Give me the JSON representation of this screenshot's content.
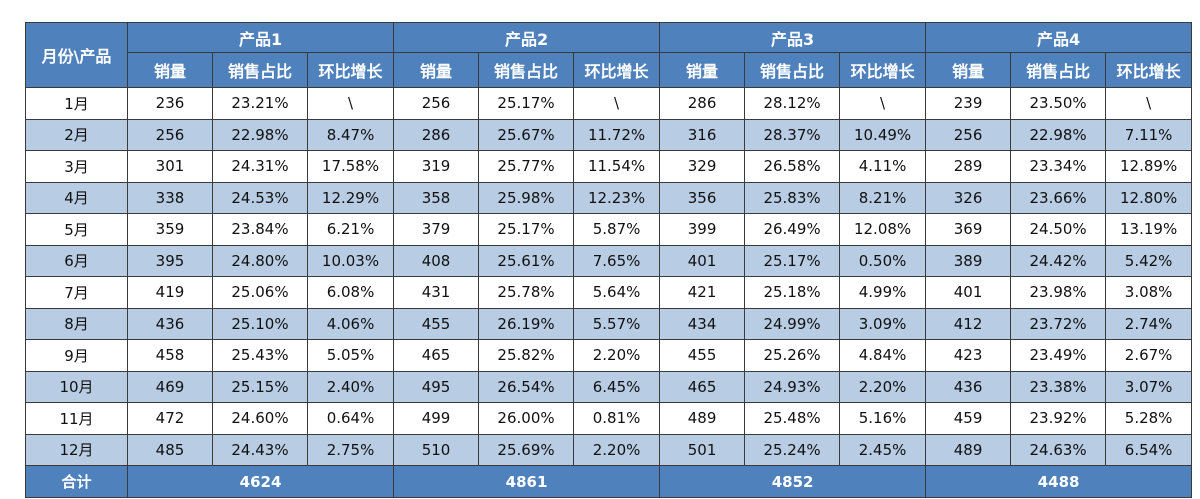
{
  "table": {
    "corner": "月份\\产品",
    "products": [
      {
        "name": "产品1",
        "columns": [
          "销量",
          "销售占比",
          "环比增长"
        ]
      },
      {
        "name": "产品2",
        "columns": [
          "销量",
          "销售占比",
          "环比增长"
        ]
      },
      {
        "name": "产品3",
        "columns": [
          "销量",
          "销售占比",
          "环比增长"
        ]
      },
      {
        "name": "产品4",
        "columns": [
          "销量",
          "销售占比",
          "环比增长"
        ]
      }
    ],
    "rows": [
      {
        "month": "1月",
        "cells": [
          "236",
          "23.21%",
          "\\",
          "256",
          "25.17%",
          "\\",
          "286",
          "28.12%",
          "\\",
          "239",
          "23.50%",
          "\\"
        ]
      },
      {
        "month": "2月",
        "cells": [
          "256",
          "22.98%",
          "8.47%",
          "286",
          "25.67%",
          "11.72%",
          "316",
          "28.37%",
          "10.49%",
          "256",
          "22.98%",
          "7.11%"
        ]
      },
      {
        "month": "3月",
        "cells": [
          "301",
          "24.31%",
          "17.58%",
          "319",
          "25.77%",
          "11.54%",
          "329",
          "26.58%",
          "4.11%",
          "289",
          "23.34%",
          "12.89%"
        ]
      },
      {
        "month": "4月",
        "cells": [
          "338",
          "24.53%",
          "12.29%",
          "358",
          "25.98%",
          "12.23%",
          "356",
          "25.83%",
          "8.21%",
          "326",
          "23.66%",
          "12.80%"
        ]
      },
      {
        "month": "5月",
        "cells": [
          "359",
          "23.84%",
          "6.21%",
          "379",
          "25.17%",
          "5.87%",
          "399",
          "26.49%",
          "12.08%",
          "369",
          "24.50%",
          "13.19%"
        ]
      },
      {
        "month": "6月",
        "cells": [
          "395",
          "24.80%",
          "10.03%",
          "408",
          "25.61%",
          "7.65%",
          "401",
          "25.17%",
          "0.50%",
          "389",
          "24.42%",
          "5.42%"
        ]
      },
      {
        "month": "7月",
        "cells": [
          "419",
          "25.06%",
          "6.08%",
          "431",
          "25.78%",
          "5.64%",
          "421",
          "25.18%",
          "4.99%",
          "401",
          "23.98%",
          "3.08%"
        ]
      },
      {
        "month": "8月",
        "cells": [
          "436",
          "25.10%",
          "4.06%",
          "455",
          "26.19%",
          "5.57%",
          "434",
          "24.99%",
          "3.09%",
          "412",
          "23.72%",
          "2.74%"
        ]
      },
      {
        "month": "9月",
        "cells": [
          "458",
          "25.43%",
          "5.05%",
          "465",
          "25.82%",
          "2.20%",
          "455",
          "25.26%",
          "4.84%",
          "423",
          "23.49%",
          "2.67%"
        ]
      },
      {
        "month": "10月",
        "cells": [
          "469",
          "25.15%",
          "2.40%",
          "495",
          "26.54%",
          "6.45%",
          "465",
          "24.93%",
          "2.20%",
          "436",
          "23.38%",
          "3.07%"
        ]
      },
      {
        "month": "11月",
        "cells": [
          "472",
          "24.60%",
          "0.64%",
          "499",
          "26.00%",
          "0.81%",
          "489",
          "25.48%",
          "5.16%",
          "459",
          "23.92%",
          "5.28%"
        ]
      },
      {
        "month": "12月",
        "cells": [
          "485",
          "24.43%",
          "2.75%",
          "510",
          "25.69%",
          "2.20%",
          "501",
          "25.24%",
          "2.45%",
          "489",
          "24.63%",
          "6.54%"
        ]
      }
    ],
    "total": {
      "label": "合计",
      "values": [
        "4624",
        "4861",
        "4852",
        "4488"
      ]
    }
  }
}
